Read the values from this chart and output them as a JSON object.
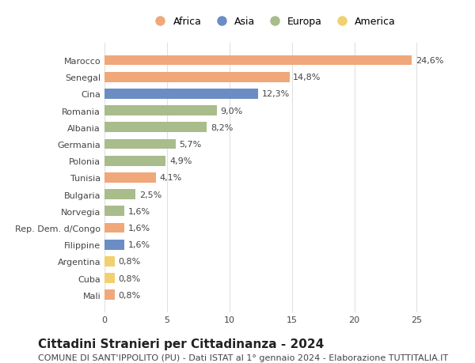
{
  "title": "Cittadini Stranieri per Cittadinanza - 2024",
  "subtitle": "COMUNE DI SANT'IPPOLITO (PU) - Dati ISTAT al 1° gennaio 2024 - Elaborazione TUTTITALIA.IT",
  "countries": [
    "Marocco",
    "Senegal",
    "Cina",
    "Romania",
    "Albania",
    "Germania",
    "Polonia",
    "Tunisia",
    "Bulgaria",
    "Norvegia",
    "Rep. Dem. d/Congo",
    "Filippine",
    "Argentina",
    "Cuba",
    "Mali"
  ],
  "values": [
    24.6,
    14.8,
    12.3,
    9.0,
    8.2,
    5.7,
    4.9,
    4.1,
    2.5,
    1.6,
    1.6,
    1.6,
    0.8,
    0.8,
    0.8
  ],
  "labels": [
    "24,6%",
    "14,8%",
    "12,3%",
    "9,0%",
    "8,2%",
    "5,7%",
    "4,9%",
    "4,1%",
    "2,5%",
    "1,6%",
    "1,6%",
    "1,6%",
    "0,8%",
    "0,8%",
    "0,8%"
  ],
  "continents": [
    "Africa",
    "Africa",
    "Asia",
    "Europa",
    "Europa",
    "Europa",
    "Europa",
    "Africa",
    "Europa",
    "Europa",
    "Africa",
    "Asia",
    "America",
    "America",
    "Africa"
  ],
  "colors": {
    "Africa": "#F0A87A",
    "Asia": "#6B8DC4",
    "Europa": "#A8BC8C",
    "America": "#F0D070"
  },
  "legend_order": [
    "Africa",
    "Asia",
    "Europa",
    "America"
  ],
  "xlim": [
    0,
    27
  ],
  "xticks": [
    0,
    5,
    10,
    15,
    20,
    25
  ],
  "background_color": "#ffffff",
  "grid_color": "#e0e0e0",
  "bar_height": 0.6,
  "title_fontsize": 11,
  "subtitle_fontsize": 8,
  "label_fontsize": 8,
  "tick_fontsize": 8,
  "legend_fontsize": 9
}
